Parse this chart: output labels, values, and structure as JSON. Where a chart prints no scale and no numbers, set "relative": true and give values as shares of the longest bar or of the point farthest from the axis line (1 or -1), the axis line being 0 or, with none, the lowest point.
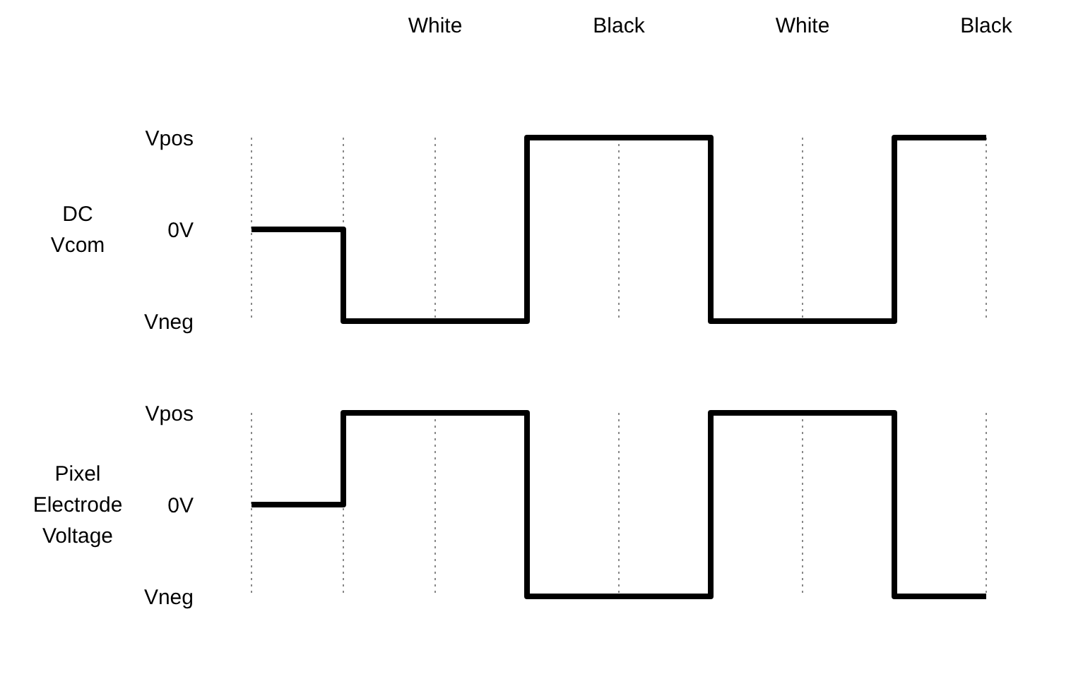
{
  "chart_data": [
    {
      "type": "step",
      "ylabel": "DC\nVcom",
      "categories": [
        null,
        "White",
        "Black",
        "White",
        "Black"
      ],
      "relative": true,
      "grid": "x",
      "line_style": "solid",
      "marker": "none",
      "annotations": [
        "Vpos",
        "0V",
        "Vneg"
      ],
      "series": [
        {
          "color": "#000000",
          "values": [
            0.5,
            0,
            1,
            0,
            1
          ]
        }
      ]
    },
    {
      "type": "step",
      "ylabel": "Pixel\nElectrode\nVoltage",
      "categories": [
        null,
        null,
        null,
        null,
        null
      ],
      "relative": true,
      "grid": "x",
      "line_style": "solid",
      "marker": "none",
      "annotations": [
        "Vpos",
        "0V",
        "Vneg"
      ],
      "series": [
        {
          "color": "#000000",
          "values": [
            0.5,
            1,
            0,
            1,
            0
          ]
        }
      ]
    }
  ]
}
